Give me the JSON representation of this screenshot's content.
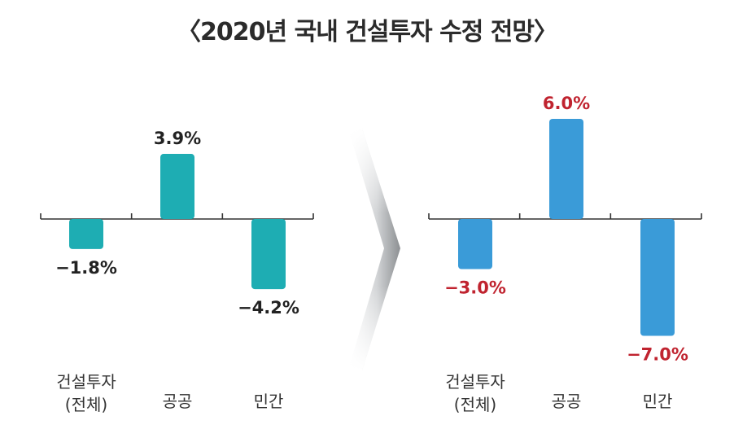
{
  "title": "〈2020년 국내 건설투자 수정 전망〉",
  "colors": {
    "left_bar": "#1eadb3",
    "right_bar": "#3a9bd8",
    "left_label": "#222222",
    "right_label": "#c0232f",
    "axis": "#333333"
  },
  "chart_data": [
    {
      "type": "bar",
      "title": "",
      "xlabel": "",
      "ylabel": "",
      "categories": [
        "건설투자\n(전체)",
        "공공",
        "민간"
      ],
      "values": [
        -1.8,
        3.9,
        -4.2
      ],
      "value_labels": [
        "−1.8%",
        "3.9%",
        "−4.2%"
      ],
      "ylim": [
        -7.5,
        6.5
      ],
      "grid": false,
      "legend": "none"
    },
    {
      "type": "bar",
      "title": "",
      "xlabel": "",
      "ylabel": "",
      "categories": [
        "건설투자\n(전체)",
        "공공",
        "민간"
      ],
      "values": [
        -3.0,
        6.0,
        -7.0
      ],
      "value_labels": [
        "−3.0%",
        "6.0%",
        "−7.0%"
      ],
      "ylim": [
        -7.5,
        6.5
      ],
      "grid": false,
      "legend": "none"
    }
  ]
}
